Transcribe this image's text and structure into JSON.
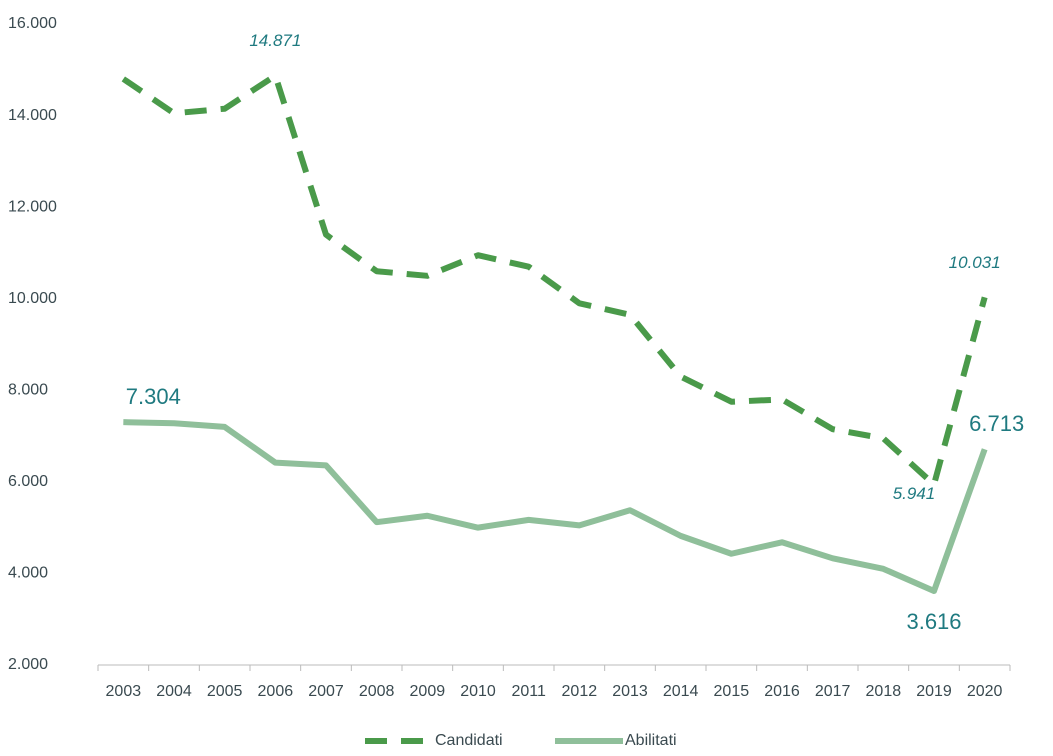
{
  "chart_data": {
    "type": "line",
    "categories": [
      "2003",
      "2004",
      "2005",
      "2006",
      "2007",
      "2008",
      "2009",
      "2010",
      "2011",
      "2012",
      "2013",
      "2014",
      "2015",
      "2016",
      "2017",
      "2018",
      "2019",
      "2020"
    ],
    "series": [
      {
        "name": "Candidati",
        "color": "#4a9a4a",
        "dashed": true,
        "values": [
          14800,
          14050,
          14150,
          14871,
          11400,
          10600,
          10500,
          10950,
          10700,
          9900,
          9650,
          8300,
          7750,
          7800,
          7150,
          6950,
          5941,
          10031
        ],
        "value_labels": [
          null,
          null,
          null,
          "14.871",
          null,
          null,
          null,
          null,
          null,
          null,
          null,
          null,
          null,
          null,
          null,
          null,
          "5.941",
          "10.031"
        ]
      },
      {
        "name": "Abilitati",
        "color": "#8fbf9a",
        "dashed": false,
        "values": [
          7304,
          7280,
          7200,
          6420,
          6360,
          5120,
          5260,
          5000,
          5170,
          5050,
          5380,
          4820,
          4430,
          4680,
          4330,
          4100,
          3616,
          6713
        ],
        "value_labels": [
          "7.304",
          null,
          null,
          null,
          null,
          null,
          null,
          null,
          null,
          null,
          null,
          null,
          null,
          null,
          null,
          null,
          "3.616",
          "6.713"
        ]
      }
    ],
    "ylim": [
      2000,
      16000
    ],
    "yticks": [
      {
        "value": 2000,
        "label": "2.000"
      },
      {
        "value": 4000,
        "label": "4.000"
      },
      {
        "value": 6000,
        "label": "6.000"
      },
      {
        "value": 8000,
        "label": "8.000"
      },
      {
        "value": 10000,
        "label": "10.000"
      },
      {
        "value": 12000,
        "label": "12.000"
      },
      {
        "value": 14000,
        "label": "14.000"
      },
      {
        "value": 16000,
        "label": "16.000"
      }
    ],
    "grid": false,
    "legend": "bottom"
  }
}
